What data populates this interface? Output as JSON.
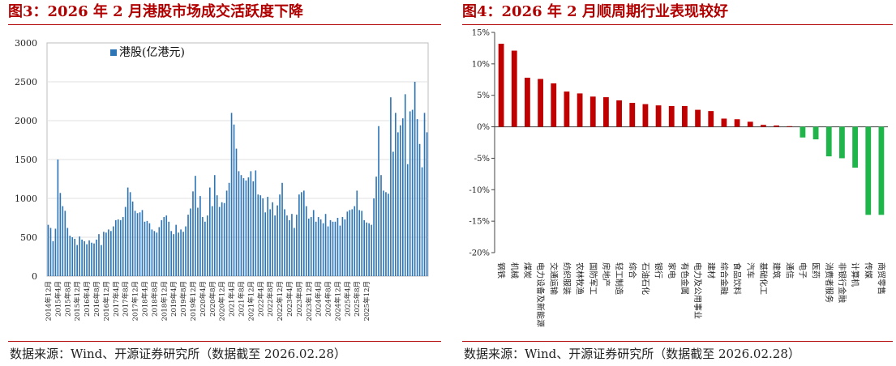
{
  "left": {
    "title": "图3：2026 年 2 月港股市场成交活跃度下降",
    "source": "数据来源：Wind、开源证券研究所（数据截至 2026.02.28）",
    "chart_data": {
      "type": "bar",
      "ylim": [
        0,
        3000
      ],
      "yticks": [
        "0",
        "500",
        "1000",
        "1500",
        "2000",
        "2500",
        "3000"
      ],
      "series": [
        {
          "name": "港股(亿港元)",
          "color": "#2e75b6",
          "values": [
            660,
            620,
            450,
            610,
            1500,
            1070,
            900,
            840,
            620,
            520,
            500,
            480,
            400,
            510,
            470,
            450,
            410,
            460,
            430,
            420,
            470,
            540,
            400,
            570,
            560,
            600,
            580,
            640,
            720,
            730,
            720,
            760,
            890,
            1140,
            1080,
            960,
            840,
            810,
            820,
            850,
            700,
            710,
            680,
            600,
            580,
            560,
            630,
            720,
            760,
            780,
            700,
            580,
            540,
            660,
            560,
            600,
            570,
            640,
            790,
            870,
            1090,
            1290,
            880,
            1030,
            760,
            700,
            780,
            1140,
            900,
            1300,
            1040,
            890,
            950,
            940,
            1100,
            1200,
            2100,
            1950,
            1640,
            1350,
            1300,
            1260,
            1230,
            1270,
            1350,
            1220,
            1360,
            1050,
            1040,
            1000,
            820,
            1020,
            860,
            950,
            780,
            910,
            1050,
            1200,
            860,
            780,
            720,
            800,
            620,
            790,
            1050,
            1080,
            1100,
            900,
            740,
            760,
            850,
            700,
            760,
            730,
            680,
            800,
            640,
            720,
            700,
            700,
            750,
            650,
            760,
            730,
            830,
            850,
            860,
            900,
            1100,
            850,
            840,
            720,
            690,
            680,
            660,
            1000,
            1280,
            1930,
            1300,
            1100,
            1080,
            1060,
            2300,
            1600,
            2100,
            1850,
            1940,
            2030,
            2340,
            1440,
            2120,
            2140,
            2500,
            2020,
            1700,
            1400,
            2100,
            1850
          ]
        }
      ],
      "xticks": [
        "2014年12月",
        "2015年4月",
        "2015年8月",
        "2015年12月",
        "2016年4月",
        "2016年8月",
        "2016年12月",
        "2017年4月",
        "2017年8月",
        "2017年12月",
        "2018年4月",
        "2018年8月",
        "2018年12月",
        "2019年4月",
        "2019年8月",
        "2019年12月",
        "2020年4月",
        "2020年8月",
        "2020年12月",
        "2021年4月",
        "2021年8月",
        "2021年12月",
        "2022年4月",
        "2022年8月",
        "2022年12月",
        "2023年4月",
        "2023年8月",
        "2023年12月",
        "2024年4月",
        "2024年8月",
        "2024年12月",
        "2025年4月",
        "2025年8月",
        "2025年12月"
      ],
      "legend": "top-left"
    }
  },
  "right": {
    "title": "图4：2026 年 2 月顺周期行业表现较好",
    "source": "数据来源：Wind、开源证券研究所（数据截至 2026.02.28）",
    "chart_data": {
      "type": "bar",
      "ylim": [
        -20,
        15
      ],
      "yticks": [
        "15%",
        "10%",
        "5%",
        "0%",
        "-5%",
        "-10%",
        "-15%",
        "-20%"
      ],
      "positive_color": "#c00000",
      "negative_color": "#1fb54a",
      "categories": [
        "钢铁",
        "机械",
        "煤炭",
        "电力设备及新能源",
        "交通运输",
        "纺织服装",
        "农林牧渔",
        "国防军工",
        "房地产",
        "轻工制造",
        "综合",
        "石油石化",
        "银行",
        "家电",
        "有色金属",
        "电力及公用事业",
        "建材",
        "综合金融",
        "食品饮料",
        "汽车",
        "基础化工",
        "建筑",
        "通信",
        "电子",
        "医药",
        "消费者服务",
        "非银行金融",
        "计算机",
        "传媒",
        "商贸零售"
      ],
      "values": [
        13.2,
        12.1,
        7.8,
        7.6,
        6.9,
        5.6,
        5.3,
        4.8,
        4.7,
        4.2,
        3.8,
        3.6,
        3.4,
        3.3,
        3.3,
        2.7,
        2.5,
        1.3,
        1.2,
        0.8,
        0.3,
        0.2,
        0.1,
        -1.7,
        -2.0,
        -4.7,
        -5.0,
        -6.5,
        -14.0,
        -14.0
      ]
    }
  }
}
